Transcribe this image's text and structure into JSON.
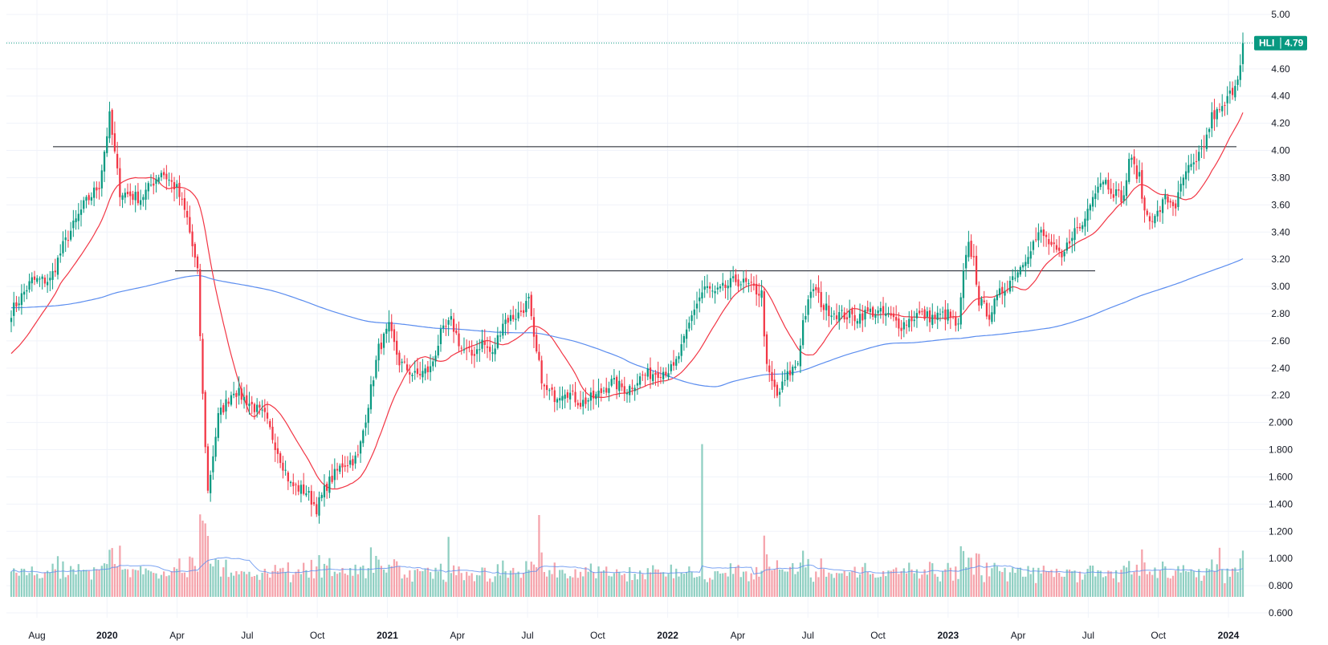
{
  "chart_data": {
    "type": "candlestick",
    "symbol": "HLI",
    "last_price": "4.79",
    "y_axis": {
      "ticks": [
        "5.00",
        "4.80",
        "4.60",
        "4.40",
        "4.20",
        "4.00",
        "3.80",
        "3.60",
        "3.40",
        "3.20",
        "3.00",
        "2.80",
        "2.60",
        "2.40",
        "2.20",
        "2.000",
        "1.800",
        "1.600",
        "1.400",
        "1.200",
        "1.000",
        "0.800",
        "0.600"
      ],
      "price_range": [
        1.2,
        5.0
      ]
    },
    "x_axis": {
      "labels": [
        {
          "text": "Aug",
          "bold": false
        },
        {
          "text": "2020",
          "bold": true
        },
        {
          "text": "Apr",
          "bold": false
        },
        {
          "text": "Jul",
          "bold": false
        },
        {
          "text": "Oct",
          "bold": false
        },
        {
          "text": "2021",
          "bold": true
        },
        {
          "text": "Apr",
          "bold": false
        },
        {
          "text": "Jul",
          "bold": false
        },
        {
          "text": "Oct",
          "bold": false
        },
        {
          "text": "2022",
          "bold": true
        },
        {
          "text": "Apr",
          "bold": false
        },
        {
          "text": "Jul",
          "bold": false
        },
        {
          "text": "Oct",
          "bold": false
        },
        {
          "text": "2023",
          "bold": true
        },
        {
          "text": "Apr",
          "bold": false
        },
        {
          "text": "Jul",
          "bold": false
        },
        {
          "text": "Oct",
          "bold": false
        },
        {
          "text": "2024",
          "bold": true
        }
      ]
    },
    "series_close_keypoints": [
      [
        0,
        2.82
      ],
      [
        8,
        3.05
      ],
      [
        15,
        3.05
      ],
      [
        20,
        3.3
      ],
      [
        28,
        3.6
      ],
      [
        34,
        3.75
      ],
      [
        38,
        4.25
      ],
      [
        42,
        3.7
      ],
      [
        50,
        3.65
      ],
      [
        58,
        3.85
      ],
      [
        64,
        3.72
      ],
      [
        68,
        3.5
      ],
      [
        72,
        3.1
      ],
      [
        74,
        2.2
      ],
      [
        76,
        1.5
      ],
      [
        80,
        2.05
      ],
      [
        86,
        2.25
      ],
      [
        92,
        2.15
      ],
      [
        98,
        2.05
      ],
      [
        104,
        1.75
      ],
      [
        108,
        1.55
      ],
      [
        114,
        1.5
      ],
      [
        118,
        1.38
      ],
      [
        122,
        1.55
      ],
      [
        128,
        1.7
      ],
      [
        134,
        1.75
      ],
      [
        138,
        2.15
      ],
      [
        142,
        2.55
      ],
      [
        146,
        2.7
      ],
      [
        150,
        2.45
      ],
      [
        156,
        2.35
      ],
      [
        162,
        2.4
      ],
      [
        166,
        2.65
      ],
      [
        170,
        2.75
      ],
      [
        174,
        2.55
      ],
      [
        178,
        2.5
      ],
      [
        182,
        2.6
      ],
      [
        186,
        2.5
      ],
      [
        190,
        2.75
      ],
      [
        196,
        2.8
      ],
      [
        200,
        2.9
      ],
      [
        202,
        2.6
      ],
      [
        206,
        2.25
      ],
      [
        210,
        2.2
      ],
      [
        214,
        2.25
      ],
      [
        220,
        2.15
      ],
      [
        226,
        2.2
      ],
      [
        232,
        2.3
      ],
      [
        238,
        2.25
      ],
      [
        244,
        2.35
      ],
      [
        250,
        2.38
      ],
      [
        256,
        2.4
      ],
      [
        260,
        2.6
      ],
      [
        264,
        2.85
      ],
      [
        268,
        3.0
      ],
      [
        272,
        2.95
      ],
      [
        276,
        3.0
      ],
      [
        280,
        3.05
      ],
      [
        284,
        3.02
      ],
      [
        290,
        2.95
      ],
      [
        292,
        2.4
      ],
      [
        296,
        2.2
      ],
      [
        300,
        2.35
      ],
      [
        304,
        2.45
      ],
      [
        306,
        2.75
      ],
      [
        310,
        3.0
      ],
      [
        314,
        2.85
      ],
      [
        320,
        2.8
      ],
      [
        326,
        2.78
      ],
      [
        332,
        2.82
      ],
      [
        338,
        2.8
      ],
      [
        344,
        2.72
      ],
      [
        350,
        2.8
      ],
      [
        356,
        2.78
      ],
      [
        362,
        2.8
      ],
      [
        366,
        2.7
      ],
      [
        368,
        3.1
      ],
      [
        370,
        3.3
      ],
      [
        372,
        3.2
      ],
      [
        374,
        2.9
      ],
      [
        378,
        2.8
      ],
      [
        382,
        2.95
      ],
      [
        386,
        3.05
      ],
      [
        390,
        3.15
      ],
      [
        394,
        3.3
      ],
      [
        398,
        3.4
      ],
      [
        402,
        3.3
      ],
      [
        406,
        3.2
      ],
      [
        410,
        3.4
      ],
      [
        414,
        3.45
      ],
      [
        418,
        3.7
      ],
      [
        422,
        3.8
      ],
      [
        426,
        3.7
      ],
      [
        430,
        3.65
      ],
      [
        432,
        3.95
      ],
      [
        436,
        3.8
      ],
      [
        438,
        3.55
      ],
      [
        442,
        3.5
      ],
      [
        446,
        3.65
      ],
      [
        450,
        3.6
      ],
      [
        454,
        3.85
      ],
      [
        458,
        3.9
      ],
      [
        462,
        4.1
      ],
      [
        464,
        4.25
      ],
      [
        468,
        4.3
      ],
      [
        472,
        4.45
      ],
      [
        474,
        4.55
      ],
      [
        476,
        4.79
      ]
    ],
    "moving_averages": [
      {
        "name": "MA short",
        "color": "#f23645"
      },
      {
        "name": "MA long",
        "color": "#5b8def"
      }
    ],
    "horizontal_lines": [
      {
        "price": 4.03
      },
      {
        "price": 3.12
      }
    ],
    "colors": {
      "up": "#089981",
      "down": "#f23645",
      "vol_up": "#8fcfc2",
      "vol_down": "#f5a3ab",
      "grid": "#f0f3fa",
      "badge": "#089981"
    },
    "grid": true,
    "volume": true
  }
}
